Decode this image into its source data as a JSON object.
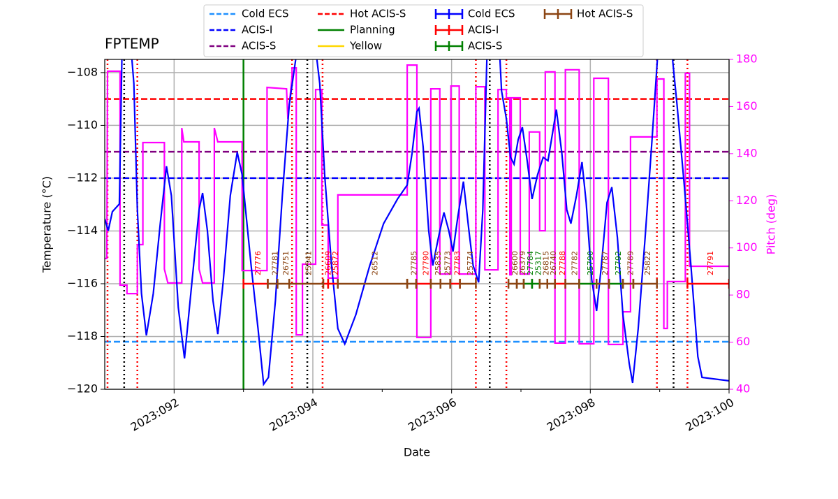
{
  "chart_data": {
    "type": "line",
    "title": "FPTEMP",
    "xlabel": "Date",
    "ylabel": "Temperature (°C)",
    "y2label": "Pitch (deg)",
    "grid": true,
    "xlim": [
      91,
      100
    ],
    "xticks": [
      {
        "value": 92,
        "label": "2023:092"
      },
      {
        "value": 94,
        "label": "2023:094"
      },
      {
        "value": 96,
        "label": "2023:096"
      },
      {
        "value": 98,
        "label": "2023:098"
      },
      {
        "value": 100,
        "label": "2023:100"
      }
    ],
    "xminorticks": [
      93,
      95,
      97,
      99
    ],
    "ylim": [
      -120,
      -107.5
    ],
    "yticks": [
      {
        "value": -120,
        "label": "−120"
      },
      {
        "value": -118,
        "label": "−118"
      },
      {
        "value": -116,
        "label": "−116"
      },
      {
        "value": -114,
        "label": "−114"
      },
      {
        "value": -112,
        "label": "−112"
      },
      {
        "value": -110,
        "label": "−110"
      },
      {
        "value": -108,
        "label": "−108"
      }
    ],
    "y2lim": [
      40,
      180
    ],
    "y2ticks": [
      40,
      60,
      80,
      100,
      120,
      140,
      160,
      180
    ],
    "y2color": "#ff00ff",
    "temperature": {
      "color": "#0000ff",
      "x": [
        91.0,
        91.05,
        91.11,
        91.21,
        91.25,
        91.38,
        91.42,
        91.47,
        91.53,
        91.6,
        91.7,
        91.8,
        91.89,
        91.96,
        92.06,
        92.15,
        92.26,
        92.36,
        92.41,
        92.48,
        92.56,
        92.63,
        92.71,
        92.81,
        92.91,
        92.98,
        93.11,
        93.21,
        93.29,
        93.36,
        93.46,
        93.56,
        93.66,
        93.76,
        93.82,
        94.04,
        94.1,
        94.17,
        94.27,
        94.36,
        94.46,
        94.62,
        94.82,
        95.02,
        95.22,
        95.36,
        95.43,
        95.5,
        95.53,
        95.59,
        95.67,
        95.73,
        95.81,
        95.89,
        95.96,
        96.02,
        96.09,
        96.17,
        96.25,
        96.31,
        96.39,
        96.45,
        96.51,
        96.53,
        96.69,
        96.72,
        96.79,
        96.85,
        96.9,
        96.96,
        97.02,
        97.09,
        97.16,
        97.24,
        97.32,
        97.39,
        97.44,
        97.51,
        97.59,
        97.66,
        97.72,
        97.8,
        97.88,
        97.94,
        98.02,
        98.09,
        98.16,
        98.24,
        98.31,
        98.39,
        98.47,
        98.56,
        98.61,
        98.69,
        98.79,
        98.89,
        98.97,
        99.0,
        99.17,
        99.25,
        99.35,
        99.45,
        99.55,
        99.61,
        100.0
      ],
      "values": [
        -113.54,
        -113.99,
        -113.27,
        -112.98,
        -107.1,
        -107.1,
        -108.42,
        -113.19,
        -116.37,
        -117.96,
        -116.37,
        -113.72,
        -111.55,
        -112.66,
        -116.9,
        -118.83,
        -115.84,
        -113.19,
        -112.56,
        -113.99,
        -116.64,
        -117.91,
        -115.84,
        -112.66,
        -111.02,
        -111.87,
        -115.31,
        -117.7,
        -119.81,
        -119.55,
        -116.64,
        -112.66,
        -109.22,
        -107.36,
        -107.1,
        -107.1,
        -108.42,
        -111.87,
        -115.31,
        -117.7,
        -118.28,
        -117.17,
        -115.31,
        -113.72,
        -112.79,
        -112.26,
        -111.07,
        -109.48,
        -109.35,
        -110.81,
        -113.99,
        -115.31,
        -114.25,
        -113.3,
        -113.99,
        -114.78,
        -113.46,
        -112.13,
        -113.99,
        -115.31,
        -115.95,
        -113.19,
        -107.36,
        -107.1,
        -107.1,
        -108.69,
        -109.75,
        -111.21,
        -111.47,
        -110.54,
        -110.07,
        -111.34,
        -112.79,
        -111.87,
        -111.21,
        -111.34,
        -110.54,
        -109.4,
        -111.07,
        -113.19,
        -113.72,
        -112.66,
        -111.39,
        -112.93,
        -115.84,
        -117.03,
        -115.31,
        -112.93,
        -112.34,
        -114.25,
        -117.17,
        -119.02,
        -119.76,
        -117.7,
        -114.25,
        -110.54,
        -107.36,
        -107.1,
        -107.1,
        -109.22,
        -112.13,
        -115.31,
        -118.76,
        -119.55,
        -119.68
      ]
    },
    "pitch": {
      "color": "#ff00ff",
      "axis": "y2",
      "x": [
        91.0,
        91.03,
        91.04,
        91.22,
        91.22,
        91.32,
        91.32,
        91.47,
        91.47,
        91.55,
        91.55,
        91.86,
        91.86,
        91.91,
        92.11,
        92.11,
        92.14,
        92.36,
        92.36,
        92.41,
        92.58,
        92.58,
        92.63,
        92.98,
        92.98,
        93.34,
        93.34,
        93.62,
        93.64,
        93.7,
        93.7,
        93.76,
        93.76,
        93.85,
        93.85,
        94.04,
        94.04,
        94.13,
        94.13,
        94.22,
        94.22,
        94.36,
        94.36,
        95.36,
        95.36,
        95.5,
        95.5,
        95.7,
        95.7,
        95.83,
        95.83,
        95.99,
        95.99,
        96.11,
        96.11,
        96.35,
        96.35,
        96.48,
        96.48,
        96.67,
        96.67,
        96.79,
        96.79,
        96.84,
        96.84,
        96.86,
        96.86,
        96.99,
        96.99,
        97.12,
        97.12,
        97.27,
        97.27,
        97.35,
        97.35,
        97.49,
        97.49,
        97.64,
        97.64,
        97.84,
        97.84,
        98.05,
        98.05,
        98.26,
        98.26,
        98.47,
        98.47,
        98.58,
        98.58,
        98.96,
        98.96,
        99.06,
        99.06,
        99.11,
        99.11,
        99.37,
        99.37,
        99.43,
        99.43,
        100.0
      ],
      "values": [
        95.5,
        95.5,
        175.0,
        175.0,
        84.2,
        84.2,
        80.6,
        80.6,
        101.4,
        101.4,
        144.7,
        144.7,
        91.0,
        85.1,
        85.1,
        150.9,
        145.0,
        145.0,
        91.0,
        85.1,
        85.1,
        150.9,
        145.0,
        145.0,
        90.4,
        90.4,
        168.1,
        167.5,
        154.8,
        172.6,
        176.4,
        176.4,
        63.1,
        63.1,
        93.1,
        93.1,
        167.2,
        167.2,
        109.7,
        109.7,
        87.2,
        87.2,
        122.5,
        122.5,
        177.6,
        177.6,
        62.0,
        62.0,
        167.5,
        167.5,
        88.9,
        88.9,
        168.7,
        168.7,
        88.9,
        88.9,
        168.4,
        168.4,
        90.7,
        90.7,
        167.2,
        167.2,
        163.7,
        163.7,
        88.6,
        88.6,
        163.7,
        163.7,
        88.9,
        88.9,
        149.2,
        149.2,
        107.3,
        107.3,
        174.7,
        174.7,
        59.6,
        59.6,
        175.6,
        175.6,
        59.3,
        59.3,
        172.0,
        172.0,
        59.0,
        59.0,
        72.9,
        72.9,
        147.1,
        147.1,
        171.7,
        171.7,
        65.8,
        65.8,
        85.7,
        85.7,
        174.1,
        174.1,
        92.2,
        92.2
      ]
    },
    "limits": [
      {
        "name": "Cold ECS",
        "color": "#1e90ff",
        "value": -118.2
      },
      {
        "name": "ACIS-I",
        "color": "#0000ff",
        "value": -112
      },
      {
        "name": "ACIS-S",
        "color": "#800080",
        "value": -111
      },
      {
        "name": "Hot ACIS-S",
        "color": "#ff0000",
        "value": -109
      }
    ],
    "planning": {
      "name": "Planning",
      "color": "#008000",
      "x": [
        93.0
      ]
    },
    "yellow": {
      "name": "Yellow",
      "color": "#ffd700",
      "x": []
    },
    "vlines": [
      {
        "color": "#ff0000",
        "x": [
          91.04,
          91.47,
          93.7,
          94.14,
          96.35,
          96.79,
          98.96,
          99.4
        ]
      },
      {
        "color": "#000000",
        "x": [
          91.28,
          93.92,
          96.55,
          99.2
        ]
      }
    ],
    "obsid_temperature": -116,
    "modes": [
      {
        "name": "Cold ECS",
        "color": "#0000ff",
        "obsids": []
      },
      {
        "name": "ACIS-I",
        "color": "#ff0000",
        "obsids": [
          {
            "label": "27776",
            "start": 93.0,
            "stop": 93.35
          },
          {
            "label": "26609",
            "start": 94.15,
            "stop": 94.22
          },
          {
            "label": "25872",
            "start": 94.22,
            "stop": 94.36
          },
          {
            "label": "27790",
            "start": 95.49,
            "stop": 95.7
          },
          {
            "label": "27783",
            "start": 95.98,
            "stop": 96.12
          },
          {
            "label": "27788",
            "start": 97.49,
            "stop": 97.64
          },
          {
            "label": "27791",
            "start": 99.4,
            "stop": 100.0
          }
        ]
      },
      {
        "name": "ACIS-S",
        "color": "#008000",
        "obsids": [
          {
            "label": "27784",
            "start": 97.04,
            "stop": 97.16
          },
          {
            "label": "25317",
            "start": 97.16,
            "stop": 97.27
          },
          {
            "label": "25790",
            "start": 97.84,
            "stop": 98.09
          },
          {
            "label": "27792",
            "start": 98.27,
            "stop": 98.47
          }
        ]
      },
      {
        "name": "Hot ACIS-S",
        "color": "#8b4513",
        "obsids": [
          {
            "label": "27781",
            "start": 93.35,
            "stop": 93.49
          },
          {
            "label": "26751",
            "start": 93.49,
            "stop": 93.66
          },
          {
            "label": "25541",
            "start": 93.66,
            "stop": 94.15
          },
          {
            "label": "26512",
            "start": 94.36,
            "stop": 95.36
          },
          {
            "label": "27785",
            "start": 95.36,
            "stop": 95.49
          },
          {
            "label": "25835",
            "start": 95.7,
            "stop": 95.84
          },
          {
            "label": "25773",
            "start": 95.84,
            "stop": 95.98
          },
          {
            "label": "25774",
            "start": 96.12,
            "stop": 96.35
          },
          {
            "label": "26600",
            "start": 96.82,
            "stop": 96.94
          },
          {
            "label": "26379",
            "start": 96.94,
            "stop": 97.04
          },
          {
            "label": "26815",
            "start": 97.27,
            "stop": 97.38
          },
          {
            "label": "26740",
            "start": 97.38,
            "stop": 97.49
          },
          {
            "label": "27782",
            "start": 97.64,
            "stop": 97.84
          },
          {
            "label": "27787",
            "start": 98.09,
            "stop": 98.27
          },
          {
            "label": "27789",
            "start": 98.47,
            "stop": 98.62
          },
          {
            "label": "25822",
            "start": 98.62,
            "stop": 98.96
          }
        ]
      }
    ]
  }
}
